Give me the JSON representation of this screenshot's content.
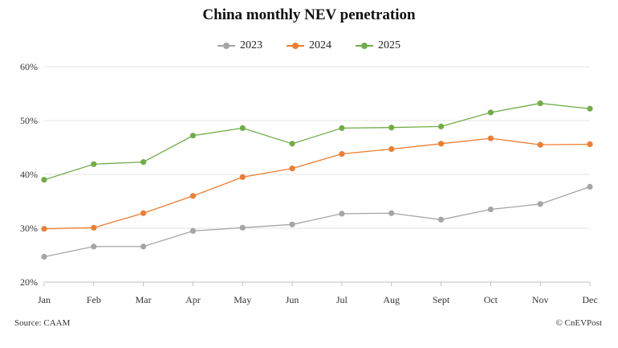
{
  "chart_data": {
    "type": "line",
    "title": "China monthly NEV penetration",
    "categories": [
      "Jan",
      "Feb",
      "Mar",
      "Apr",
      "May",
      "Jun",
      "Jul",
      "Aug",
      "Sept",
      "Oct",
      "Nov",
      "Dec"
    ],
    "ylim": [
      20,
      60
    ],
    "yticks": [
      "20%",
      "30%",
      "40%",
      "50%",
      "60%"
    ],
    "ytick_values": [
      20,
      30,
      40,
      50,
      60
    ],
    "series": [
      {
        "name": "2023",
        "color": "#a5a5a5",
        "values": [
          24.7,
          26.6,
          26.6,
          29.5,
          30.1,
          30.7,
          32.7,
          32.8,
          31.6,
          33.5,
          34.5,
          37.7
        ]
      },
      {
        "name": "2024",
        "color": "#ed7d31",
        "values": [
          29.9,
          30.1,
          32.8,
          36.0,
          39.5,
          41.1,
          43.8,
          44.7,
          45.7,
          46.7,
          45.5,
          45.6
        ]
      },
      {
        "name": "2025",
        "color": "#70ad47",
        "values": [
          39.0,
          41.9,
          42.3,
          47.2,
          48.6,
          45.7,
          48.6,
          48.7,
          48.9,
          51.5,
          53.2,
          52.2
        ]
      }
    ]
  },
  "footer": {
    "source": "Source: CAAM",
    "credit": "© CnEVPost"
  }
}
